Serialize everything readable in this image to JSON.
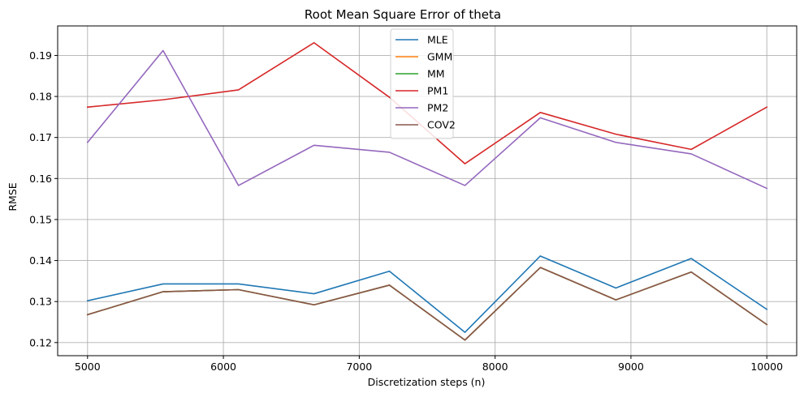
{
  "chart_data": {
    "type": "line",
    "title": "Root Mean Square Error of theta",
    "xlabel": "Discretization steps (n)",
    "ylabel": "RMSE",
    "xlim": [
      4780,
      10220
    ],
    "ylim": [
      0.1168,
      0.1972
    ],
    "xticks": [
      5000,
      6000,
      7000,
      8000,
      9000,
      10000
    ],
    "xtick_labels": [
      "5000",
      "6000",
      "7000",
      "8000",
      "9000",
      "10000"
    ],
    "yticks": [
      0.12,
      0.13,
      0.14,
      0.15,
      0.16,
      0.17,
      0.18,
      0.19
    ],
    "ytick_labels": [
      "0.12",
      "0.13",
      "0.14",
      "0.15",
      "0.16",
      "0.17",
      "0.18",
      "0.19"
    ],
    "grid": true,
    "legend_position": "top-center",
    "x": [
      5000,
      5556,
      6111,
      6667,
      7222,
      7778,
      8333,
      8889,
      9444,
      10000
    ],
    "series": [
      {
        "name": "MLE",
        "color": "#1f77b4",
        "values": [
          0.1302,
          0.1343,
          0.1343,
          0.1319,
          0.1374,
          0.1225,
          0.1411,
          0.1333,
          0.1405,
          0.1281
        ]
      },
      {
        "name": "GMM",
        "color": "#ff7f0e",
        "values": [
          0.1268,
          0.1324,
          0.1329,
          0.1292,
          0.134,
          0.1206,
          0.1383,
          0.1304,
          0.1372,
          0.1244
        ]
      },
      {
        "name": "MM",
        "color": "#2ca02c",
        "values": [
          0.1268,
          0.1324,
          0.1329,
          0.1292,
          0.134,
          0.1206,
          0.1383,
          0.1304,
          0.1372,
          0.1244
        ]
      },
      {
        "name": "PM1",
        "color": "#d62728",
        "values": [
          0.1774,
          0.1792,
          0.1816,
          0.1931,
          0.1798,
          0.1636,
          0.1761,
          0.1708,
          0.1671,
          0.1774
        ]
      },
      {
        "name": "PM2",
        "color": "#9467bd",
        "values": [
          0.1688,
          0.1912,
          0.1583,
          0.1681,
          0.1664,
          0.1583,
          0.1748,
          0.1688,
          0.166,
          0.1576
        ]
      },
      {
        "name": "COV2",
        "color": "#8c564b",
        "values": [
          0.1268,
          0.1324,
          0.1329,
          0.1292,
          0.134,
          0.1206,
          0.1383,
          0.1304,
          0.1372,
          0.1244
        ]
      }
    ]
  }
}
